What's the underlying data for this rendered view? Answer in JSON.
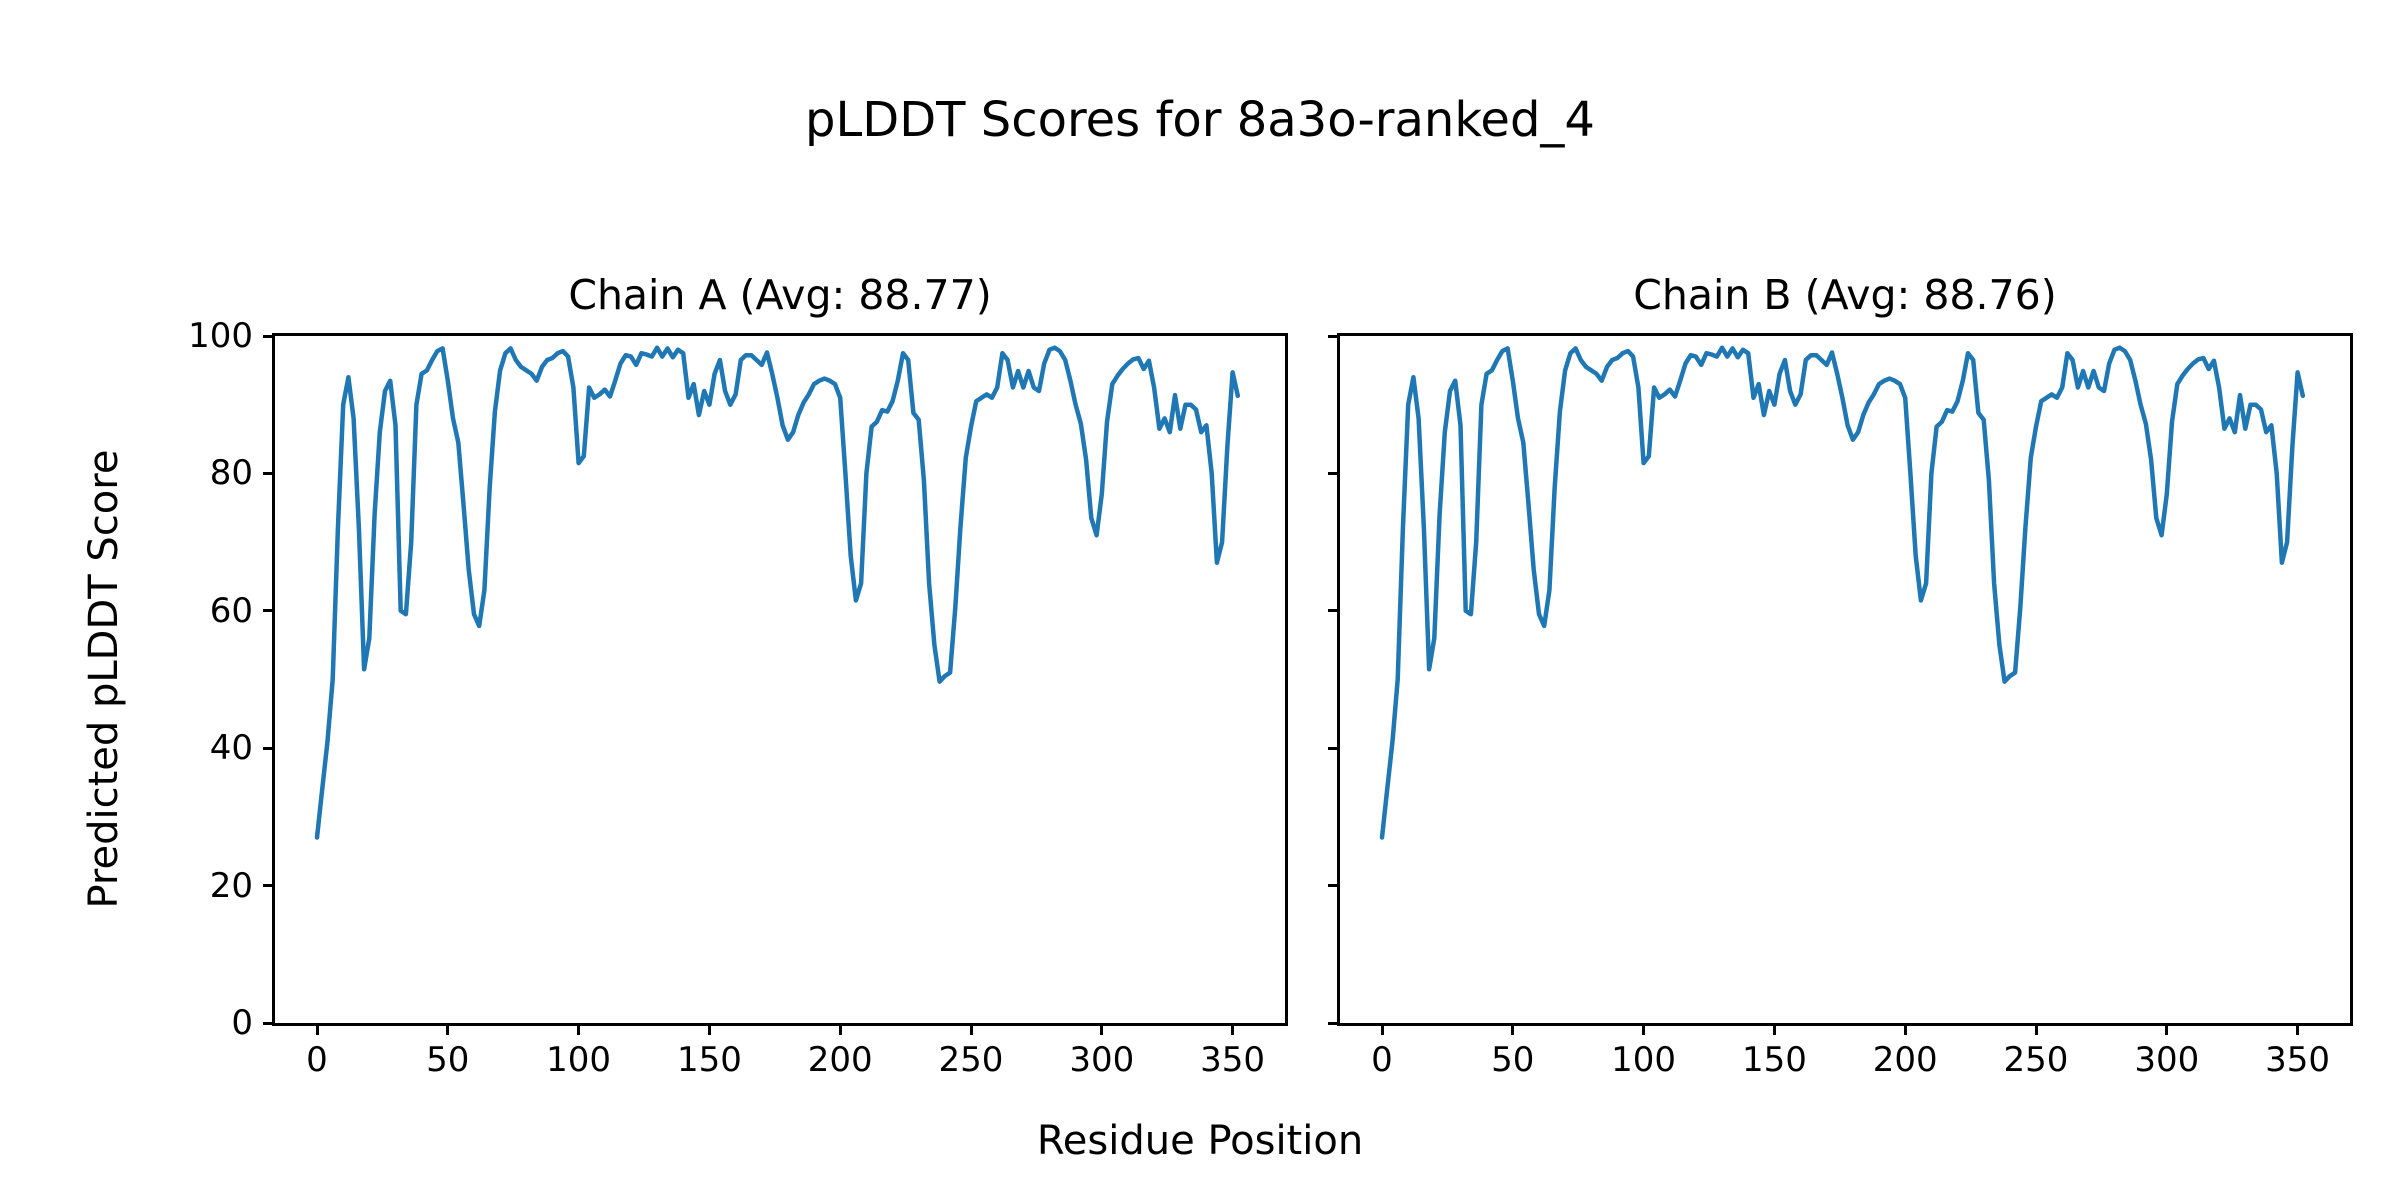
{
  "figure": {
    "title": "pLDDT Scores for 8a3o-ranked_4",
    "xlabel": "Residue Position",
    "ylabel": "Predicted pLDDT Score"
  },
  "chart_data": {
    "type": "line",
    "line_color": "#1f77b4",
    "background_color": "#ffffff",
    "grid": false,
    "legend": "none",
    "x_start": 0,
    "x_step": 2,
    "xlim": [
      0,
      352
    ],
    "ylim": [
      0,
      100
    ],
    "x_tick_labels": [
      "0",
      "50",
      "100",
      "150",
      "200",
      "250",
      "300",
      "350"
    ],
    "y_tick_labels": [
      "0",
      "20",
      "40",
      "60",
      "80",
      "100"
    ],
    "series": [
      {
        "name": "Chain A",
        "title": "Chain A (Avg: 88.77)",
        "avg": 88.77,
        "values": [
          27,
          34,
          41,
          50,
          72,
          90,
          94,
          88,
          72,
          51.5,
          56,
          74,
          86,
          92,
          93.5,
          87,
          60,
          59.5,
          70,
          90,
          94.5,
          95,
          96.5,
          97.8,
          98.2,
          93.5,
          88,
          84.5,
          75.5,
          66,
          59.5,
          57.8,
          63,
          78,
          89,
          95,
          97.5,
          98.2,
          96.5,
          95.5,
          95,
          94.5,
          93.5,
          95.5,
          96.5,
          96.8,
          97.5,
          97.8,
          97,
          92.5,
          81.5,
          82.5,
          92.5,
          91,
          91.5,
          92.2,
          91.2,
          93.5,
          96,
          97.2,
          97,
          95.8,
          97.5,
          97.3,
          97,
          98.3,
          97,
          98.2,
          96.9,
          98,
          97.5,
          91,
          93,
          88.5,
          92,
          90,
          94.5,
          96.5,
          92,
          90,
          91.5,
          96.5,
          97.2,
          97.2,
          96.5,
          95.8,
          97.6,
          94.5,
          91,
          87,
          84.9,
          86,
          88.5,
          90.3,
          91.5,
          93,
          93.5,
          93.8,
          93.5,
          93,
          91,
          80,
          68,
          61.5,
          64,
          80,
          86.8,
          87.5,
          89.2,
          89,
          90.5,
          93.5,
          97.5,
          96.5,
          88.8,
          87.8,
          79,
          64,
          55,
          49.7,
          50.5,
          51,
          60.5,
          72.3,
          82.3,
          86.8,
          90.5,
          91,
          91.5,
          91,
          92.5,
          97.5,
          96.5,
          92.5,
          94.9,
          92.5,
          94.9,
          92.5,
          92,
          96,
          98,
          98.3,
          97.8,
          96.5,
          93.5,
          90,
          87.2,
          82,
          73.5,
          71,
          77,
          87.5,
          93,
          94.2,
          95.2,
          96,
          96.6,
          96.8,
          95.2,
          96.4,
          92.5,
          86.5,
          88,
          86,
          91.4,
          86.5,
          90,
          90,
          89.3,
          86,
          87,
          80,
          67,
          70,
          84,
          94.7,
          91.3
        ]
      },
      {
        "name": "Chain B",
        "title": "Chain B (Avg: 88.76)",
        "avg": 88.76,
        "values": [
          27,
          34,
          41,
          50,
          72,
          90,
          94,
          88,
          72,
          51.5,
          56,
          74,
          86,
          92,
          93.5,
          87,
          60,
          59.5,
          70,
          90,
          94.5,
          95,
          96.5,
          97.8,
          98.2,
          93.5,
          88,
          84.5,
          75.5,
          66,
          59.5,
          57.8,
          63,
          78,
          89,
          95,
          97.5,
          98.2,
          96.5,
          95.5,
          95,
          94.5,
          93.5,
          95.5,
          96.5,
          96.8,
          97.5,
          97.8,
          97,
          92.5,
          81.5,
          82.5,
          92.5,
          91,
          91.5,
          92.2,
          91.2,
          93.5,
          96,
          97.2,
          97,
          95.8,
          97.5,
          97.3,
          97,
          98.3,
          97,
          98.2,
          96.9,
          98,
          97.5,
          91,
          93,
          88.5,
          92,
          90,
          94.5,
          96.5,
          92,
          90,
          91.5,
          96.5,
          97.2,
          97.2,
          96.5,
          95.8,
          97.6,
          94.5,
          91,
          87,
          84.9,
          86,
          88.5,
          90.3,
          91.5,
          93,
          93.5,
          93.8,
          93.5,
          93,
          91,
          80,
          68,
          61.5,
          64,
          80,
          86.8,
          87.5,
          89.2,
          89,
          90.5,
          93.5,
          97.5,
          96.5,
          88.8,
          87.8,
          79,
          64,
          55,
          49.7,
          50.5,
          51,
          60.5,
          72.3,
          82.3,
          86.8,
          90.5,
          91,
          91.5,
          91,
          92.5,
          97.5,
          96.5,
          92.5,
          94.9,
          92.5,
          94.9,
          92.5,
          92,
          96,
          98,
          98.3,
          97.8,
          96.5,
          93.5,
          90,
          87.2,
          82,
          73.5,
          71,
          77,
          87.5,
          93,
          94.2,
          95.2,
          96,
          96.6,
          96.8,
          95.2,
          96.4,
          92.5,
          86.5,
          88,
          86,
          91.4,
          86.5,
          90,
          90,
          89.3,
          86,
          87,
          80,
          67,
          70,
          84,
          94.7,
          91.3
        ]
      }
    ]
  }
}
